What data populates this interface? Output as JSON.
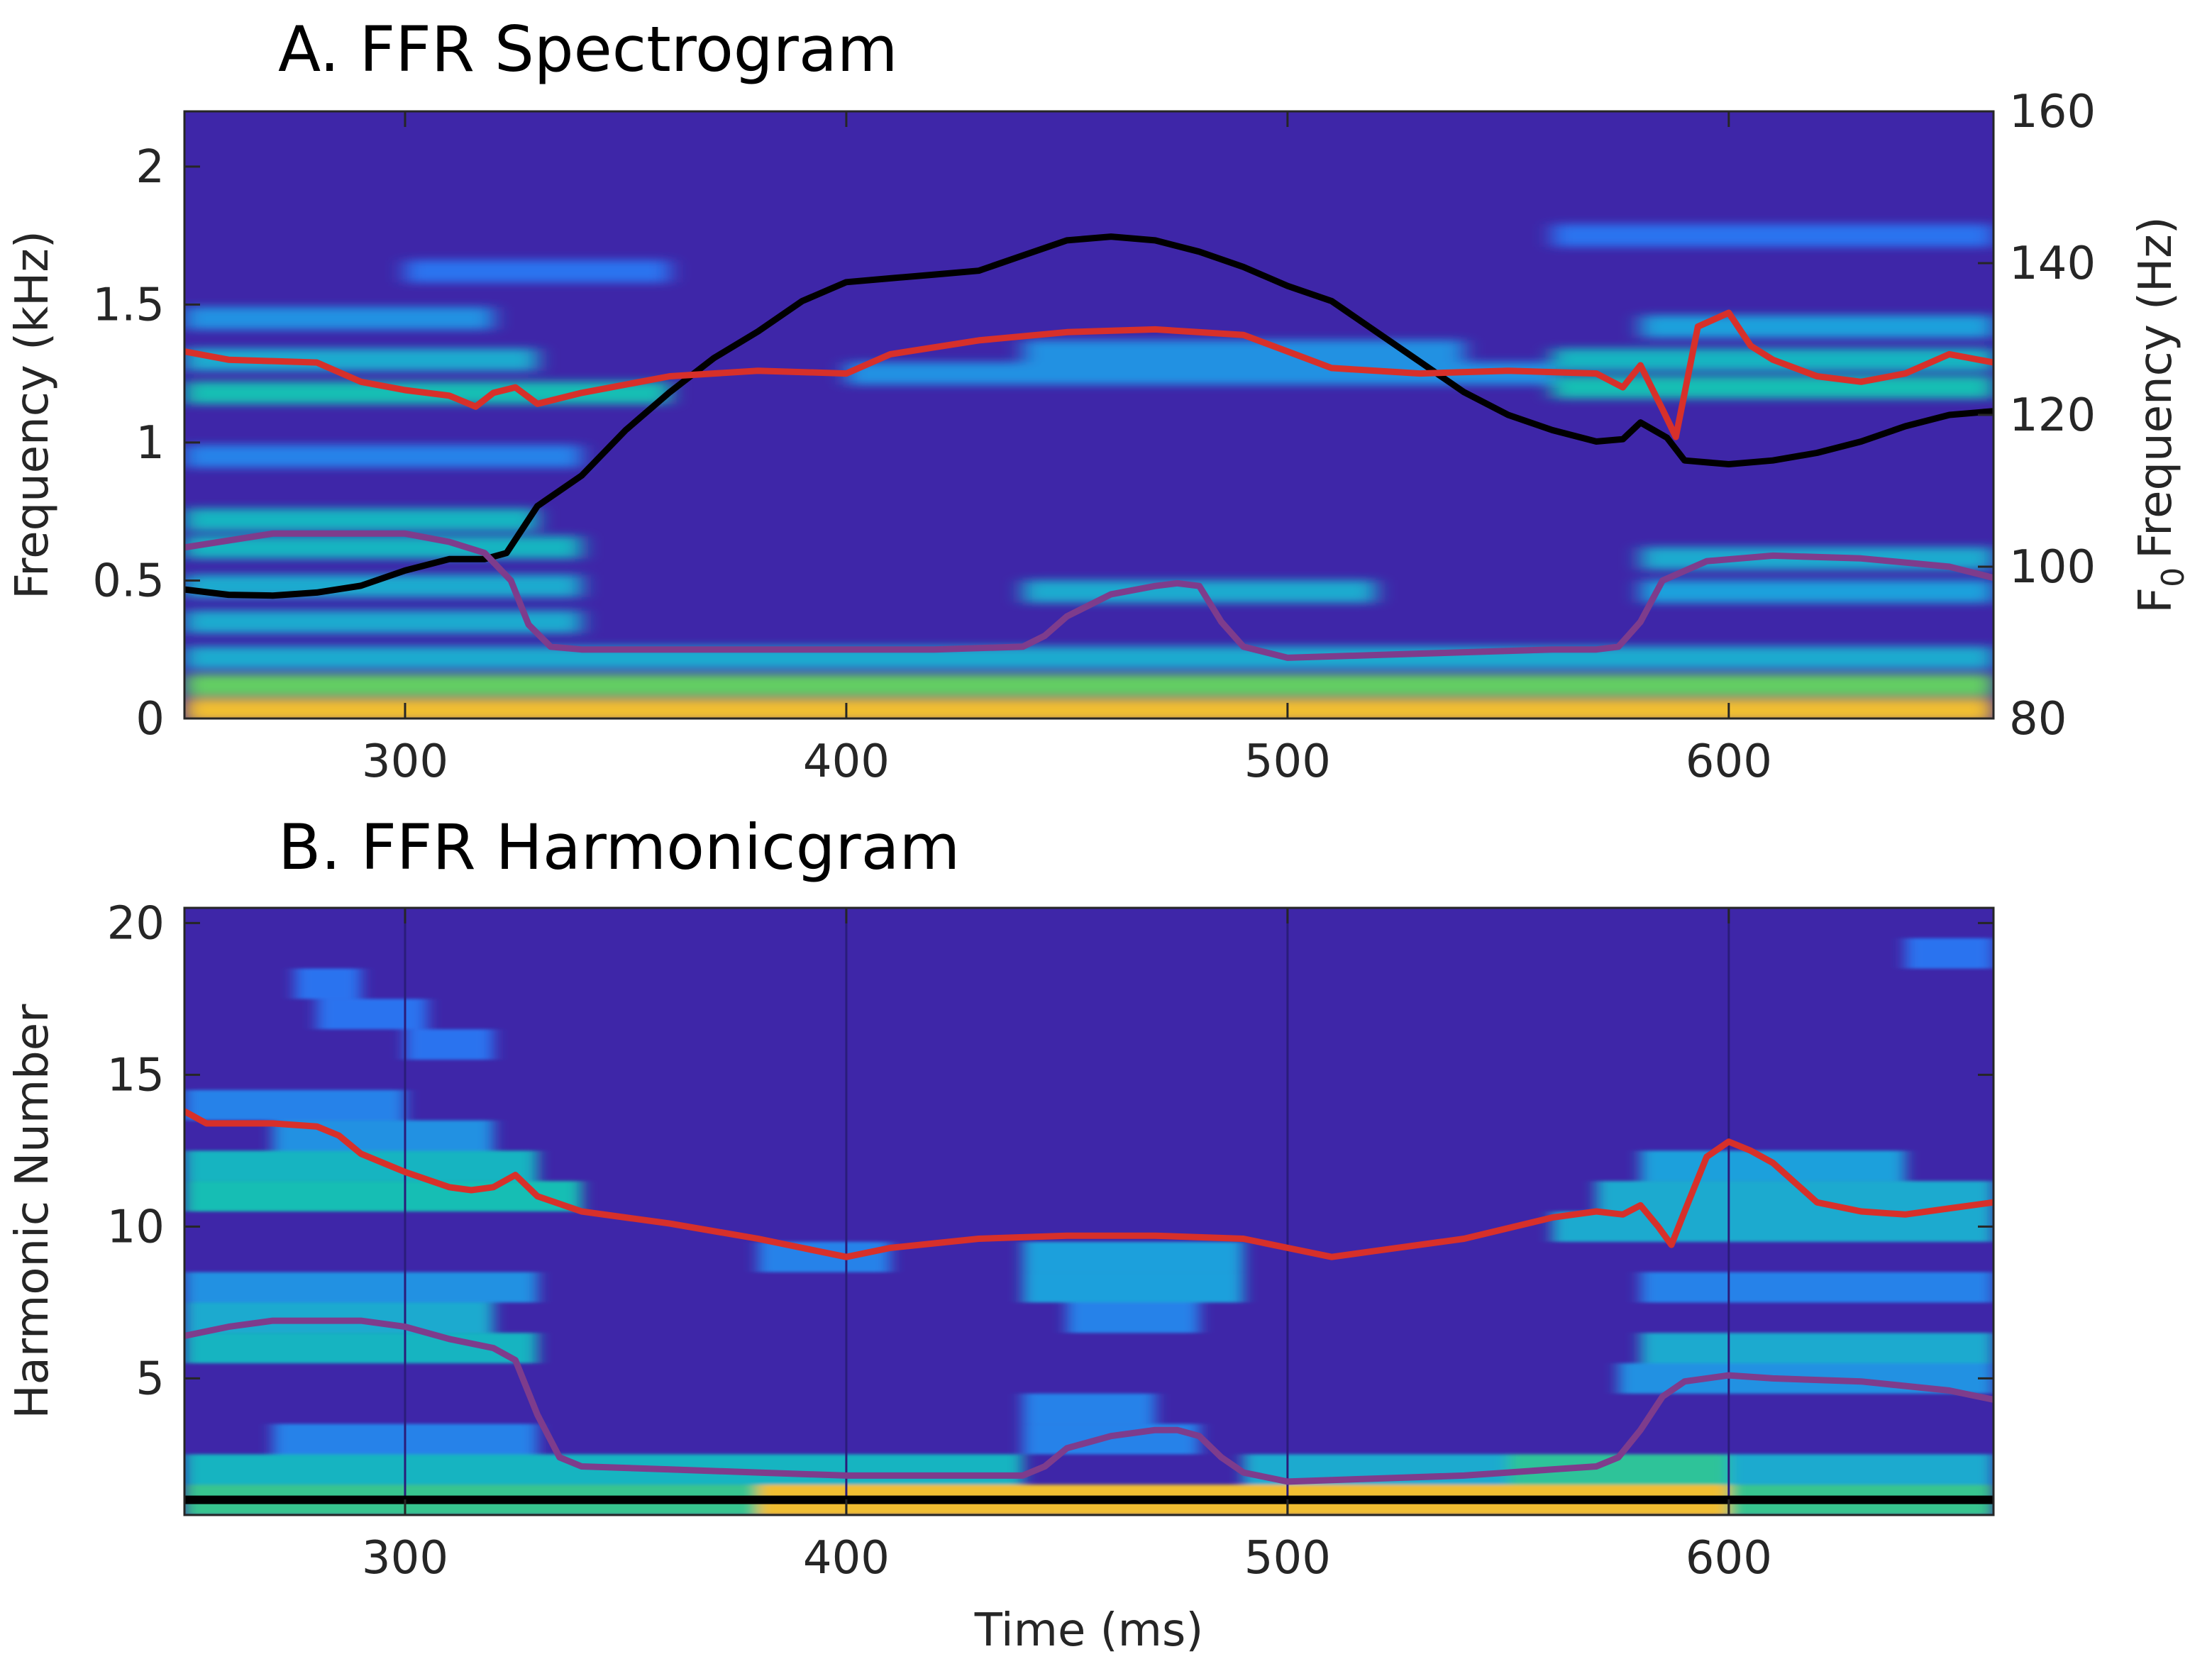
{
  "chart_data": [
    {
      "type": "heatmap",
      "panel": "spectrogram",
      "title": "A. FFR Spectrogram",
      "xlabel": "",
      "ylabel": "Frequency (kHz)",
      "y2label_main": "Frequency (Hz)",
      "y2label_prefix": "F",
      "y2label_sub": "0",
      "xlim": [
        250,
        660
      ],
      "ylim": [
        0,
        2.2
      ],
      "y2lim": [
        80,
        160
      ],
      "xticks": [
        "300",
        "400",
        "500",
        "600"
      ],
      "xtick_values": [
        300,
        400,
        500,
        600
      ],
      "yticks": [
        "0",
        "0.5",
        "1",
        "1.5",
        "2"
      ],
      "ytick_values": [
        0,
        0.5,
        1,
        1.5,
        2
      ],
      "y2ticks": [
        "80",
        "100",
        "120",
        "140",
        "160"
      ],
      "y2tick_values": [
        80,
        100,
        120,
        140,
        160
      ],
      "colormap": "parula",
      "colors": {
        "background": "#3e26a8",
        "black_line": "#000000",
        "red_line": "#d7302a",
        "purple_line": "#7e3c8c"
      },
      "energy_bands": [
        {
          "y": 0.03,
          "x0": 250,
          "x1": 660,
          "level": 0.85
        },
        {
          "y": 0.12,
          "x0": 250,
          "x1": 660,
          "level": 0.7
        },
        {
          "y": 0.22,
          "x0": 250,
          "x1": 660,
          "level": 0.45
        },
        {
          "y": 0.35,
          "x0": 250,
          "x1": 340,
          "level": 0.45
        },
        {
          "y": 0.48,
          "x0": 250,
          "x1": 340,
          "level": 0.45
        },
        {
          "y": 0.62,
          "x0": 250,
          "x1": 340,
          "level": 0.5
        },
        {
          "y": 0.72,
          "x0": 250,
          "x1": 330,
          "level": 0.5
        },
        {
          "y": 0.46,
          "x0": 440,
          "x1": 520,
          "level": 0.45
        },
        {
          "y": 0.58,
          "x0": 580,
          "x1": 660,
          "level": 0.45
        },
        {
          "y": 0.46,
          "x0": 580,
          "x1": 660,
          "level": 0.4
        },
        {
          "y": 1.18,
          "x0": 250,
          "x1": 360,
          "level": 0.55
        },
        {
          "y": 1.3,
          "x0": 250,
          "x1": 330,
          "level": 0.45
        },
        {
          "y": 1.45,
          "x0": 250,
          "x1": 320,
          "level": 0.35
        },
        {
          "y": 1.25,
          "x0": 400,
          "x1": 560,
          "level": 0.35
        },
        {
          "y": 1.33,
          "x0": 440,
          "x1": 540,
          "level": 0.35
        },
        {
          "y": 1.2,
          "x0": 560,
          "x1": 660,
          "level": 0.55
        },
        {
          "y": 1.3,
          "x0": 560,
          "x1": 660,
          "level": 0.5
        },
        {
          "y": 1.42,
          "x0": 580,
          "x1": 660,
          "level": 0.4
        },
        {
          "y": 0.95,
          "x0": 250,
          "x1": 340,
          "level": 0.3
        },
        {
          "y": 1.62,
          "x0": 300,
          "x1": 360,
          "level": 0.25
        },
        {
          "y": 1.75,
          "x0": 560,
          "x1": 660,
          "level": 0.25
        }
      ],
      "series": [
        {
          "axis": "right",
          "color": "#000000",
          "x": [
            250,
            260,
            270,
            280,
            290,
            300,
            310,
            318,
            323,
            330,
            340,
            350,
            360,
            370,
            380,
            390,
            400,
            410,
            420,
            430,
            440,
            450,
            460,
            470,
            480,
            490,
            500,
            510,
            520,
            530,
            540,
            550,
            560,
            570,
            576,
            580,
            586,
            590,
            600,
            610,
            620,
            630,
            640,
            650,
            660
          ],
          "y": [
            97,
            96.3,
            96.2,
            96.6,
            97.5,
            99.5,
            101,
            101,
            101.8,
            108,
            112,
            118,
            123,
            127.5,
            131,
            135,
            137.5,
            138,
            138.5,
            139,
            141,
            143,
            143.5,
            143,
            141.5,
            139.5,
            137,
            135,
            131,
            127,
            123,
            120,
            118,
            116.5,
            116.8,
            119,
            117,
            114,
            113.5,
            114,
            115,
            116.5,
            118.5,
            120,
            120.5
          ]
        },
        {
          "axis": "left",
          "color": "#d7302a",
          "x": [
            250,
            260,
            280,
            290,
            300,
            310,
            316,
            320,
            325,
            330,
            340,
            360,
            380,
            400,
            410,
            430,
            450,
            470,
            490,
            500,
            510,
            530,
            550,
            570,
            576,
            580,
            585,
            588,
            593,
            600,
            605,
            610,
            620,
            630,
            640,
            650,
            660
          ],
          "y": [
            1.33,
            1.3,
            1.29,
            1.22,
            1.19,
            1.17,
            1.13,
            1.18,
            1.2,
            1.14,
            1.18,
            1.24,
            1.26,
            1.25,
            1.32,
            1.37,
            1.4,
            1.41,
            1.39,
            1.33,
            1.27,
            1.25,
            1.26,
            1.25,
            1.2,
            1.28,
            1.12,
            1.02,
            1.42,
            1.47,
            1.35,
            1.3,
            1.24,
            1.22,
            1.25,
            1.32,
            1.29
          ]
        },
        {
          "axis": "left",
          "color": "#7e3c8c",
          "x": [
            250,
            270,
            290,
            300,
            310,
            318,
            324,
            328,
            333,
            340,
            360,
            380,
            400,
            420,
            440,
            445,
            450,
            460,
            470,
            475,
            480,
            485,
            490,
            500,
            520,
            540,
            560,
            570,
            575,
            580,
            585,
            595,
            610,
            630,
            650,
            660
          ],
          "y": [
            0.62,
            0.67,
            0.67,
            0.67,
            0.64,
            0.6,
            0.5,
            0.34,
            0.26,
            0.25,
            0.25,
            0.25,
            0.25,
            0.25,
            0.26,
            0.3,
            0.37,
            0.45,
            0.48,
            0.49,
            0.48,
            0.35,
            0.26,
            0.22,
            0.23,
            0.24,
            0.25,
            0.25,
            0.26,
            0.35,
            0.5,
            0.57,
            0.59,
            0.58,
            0.55,
            0.51
          ]
        }
      ]
    },
    {
      "type": "heatmap",
      "panel": "harmonicgram",
      "title": "B. FFR Harmonicgram",
      "xlabel": "Time (ms)",
      "ylabel": "Harmonic Number",
      "xlim": [
        250,
        660
      ],
      "ylim": [
        0.5,
        20.5
      ],
      "xticks": [
        "300",
        "400",
        "500",
        "600"
      ],
      "xtick_values": [
        300,
        400,
        500,
        600
      ],
      "yticks": [
        "5",
        "10",
        "15",
        "20"
      ],
      "ytick_values": [
        5,
        10,
        15,
        20
      ],
      "colormap": "parula",
      "colors": {
        "background": "#3e26a8",
        "black_line": "#000000",
        "red_line": "#d7302a",
        "purple_line": "#7e3c8c"
      },
      "cells": [
        {
          "h": 1,
          "x0": 250,
          "x1": 660,
          "level": 0.62
        },
        {
          "h": 1,
          "x0": 380,
          "x1": 600,
          "level": 0.85
        },
        {
          "h": 2,
          "x0": 250,
          "x1": 440,
          "level": 0.5
        },
        {
          "h": 2,
          "x0": 490,
          "x1": 660,
          "level": 0.45
        },
        {
          "h": 2,
          "x0": 550,
          "x1": 600,
          "level": 0.6
        },
        {
          "h": 3,
          "x0": 270,
          "x1": 330,
          "level": 0.3
        },
        {
          "h": 3,
          "x0": 440,
          "x1": 480,
          "level": 0.3
        },
        {
          "h": 4,
          "x0": 440,
          "x1": 470,
          "level": 0.3
        },
        {
          "h": 5,
          "x0": 575,
          "x1": 660,
          "level": 0.35
        },
        {
          "h": 6,
          "x0": 250,
          "x1": 330,
          "level": 0.5
        },
        {
          "h": 6,
          "x0": 580,
          "x1": 660,
          "level": 0.45
        },
        {
          "h": 7,
          "x0": 250,
          "x1": 320,
          "level": 0.45
        },
        {
          "h": 7,
          "x0": 450,
          "x1": 480,
          "level": 0.3
        },
        {
          "h": 8,
          "x0": 250,
          "x1": 330,
          "level": 0.35
        },
        {
          "h": 8,
          "x0": 440,
          "x1": 490,
          "level": 0.4
        },
        {
          "h": 8,
          "x0": 580,
          "x1": 660,
          "level": 0.3
        },
        {
          "h": 9,
          "x0": 380,
          "x1": 410,
          "level": 0.3
        },
        {
          "h": 9,
          "x0": 440,
          "x1": 490,
          "level": 0.4
        },
        {
          "h": 10,
          "x0": 560,
          "x1": 660,
          "level": 0.45
        },
        {
          "h": 11,
          "x0": 250,
          "x1": 340,
          "level": 0.55
        },
        {
          "h": 11,
          "x0": 570,
          "x1": 660,
          "level": 0.45
        },
        {
          "h": 12,
          "x0": 250,
          "x1": 330,
          "level": 0.5
        },
        {
          "h": 12,
          "x0": 580,
          "x1": 640,
          "level": 0.4
        },
        {
          "h": 13,
          "x0": 270,
          "x1": 320,
          "level": 0.35
        },
        {
          "h": 14,
          "x0": 250,
          "x1": 300,
          "level": 0.3
        },
        {
          "h": 16,
          "x0": 300,
          "x1": 320,
          "level": 0.25
        },
        {
          "h": 17,
          "x0": 280,
          "x1": 305,
          "level": 0.25
        },
        {
          "h": 18,
          "x0": 275,
          "x1": 290,
          "level": 0.25
        },
        {
          "h": 19,
          "x0": 640,
          "x1": 660,
          "level": 0.25
        }
      ],
      "series": [
        {
          "color": "#d7302a",
          "x": [
            250,
            255,
            260,
            270,
            280,
            285,
            290,
            300,
            310,
            315,
            320,
            325,
            330,
            340,
            360,
            380,
            390,
            400,
            410,
            430,
            450,
            470,
            490,
            500,
            510,
            520,
            540,
            560,
            570,
            576,
            580,
            584,
            587,
            590,
            595,
            600,
            605,
            610,
            620,
            630,
            640,
            650,
            660
          ],
          "y": [
            13.8,
            13.4,
            13.4,
            13.4,
            13.3,
            13.0,
            12.4,
            11.8,
            11.3,
            11.2,
            11.3,
            11.7,
            11.0,
            10.5,
            10.1,
            9.6,
            9.3,
            9.0,
            9.3,
            9.6,
            9.7,
            9.7,
            9.6,
            9.3,
            9.0,
            9.2,
            9.6,
            10.3,
            10.5,
            10.4,
            10.7,
            10.0,
            9.4,
            10.5,
            12.3,
            12.8,
            12.5,
            12.1,
            10.8,
            10.5,
            10.4,
            10.6,
            10.8
          ]
        },
        {
          "color": "#7e3c8c",
          "x": [
            250,
            260,
            270,
            280,
            290,
            300,
            310,
            320,
            325,
            330,
            335,
            340,
            360,
            380,
            400,
            420,
            440,
            445,
            450,
            460,
            470,
            475,
            480,
            485,
            490,
            500,
            520,
            540,
            560,
            570,
            575,
            580,
            585,
            590,
            600,
            610,
            630,
            650,
            660
          ],
          "y": [
            6.4,
            6.7,
            6.9,
            6.9,
            6.9,
            6.7,
            6.3,
            6.0,
            5.6,
            3.8,
            2.4,
            2.1,
            2.0,
            1.9,
            1.8,
            1.8,
            1.8,
            2.1,
            2.7,
            3.1,
            3.3,
            3.3,
            3.1,
            2.4,
            1.9,
            1.6,
            1.7,
            1.8,
            2.0,
            2.1,
            2.4,
            3.3,
            4.4,
            4.9,
            5.1,
            5.0,
            4.9,
            4.6,
            4.3
          ]
        },
        {
          "color": "#000000",
          "x": [
            250,
            660
          ],
          "y": [
            1,
            1
          ]
        }
      ]
    }
  ]
}
